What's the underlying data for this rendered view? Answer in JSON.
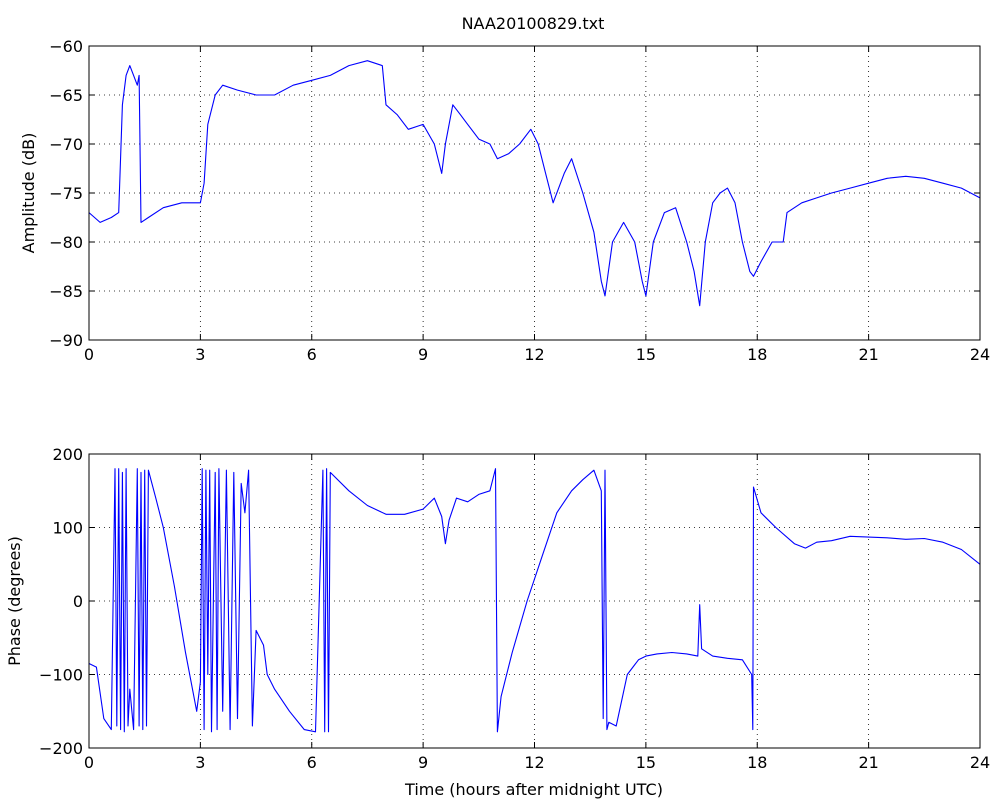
{
  "figure": {
    "title": "NAA20100829.txt"
  },
  "chart_data": [
    {
      "type": "line",
      "title": "NAA20100829.txt",
      "xlabel": "",
      "ylabel": "Amplitude (dB)",
      "xlim": [
        0,
        24
      ],
      "ylim": [
        -90,
        -60
      ],
      "xticks": [
        "0",
        "3",
        "6",
        "9",
        "12",
        "15",
        "18",
        "21",
        "24"
      ],
      "yticks": [
        "-60",
        "-65",
        "-70",
        "-75",
        "-80",
        "-85",
        "-90"
      ],
      "grid": true,
      "color": "#0000ff",
      "series": [
        {
          "x": [
            0,
            0.3,
            0.6,
            0.8,
            0.9,
            1.0,
            1.1,
            1.2,
            1.3,
            1.35,
            1.4,
            1.6,
            2.0,
            2.5,
            3.0,
            3.1,
            3.2,
            3.4,
            3.6,
            4.0,
            4.5,
            5.0,
            5.5,
            6.0,
            6.5,
            7.0,
            7.5,
            7.9,
            8.0,
            8.3,
            8.6,
            9.0,
            9.3,
            9.5,
            9.6,
            9.8,
            10.0,
            10.2,
            10.5,
            10.8,
            11.0,
            11.3,
            11.6,
            11.9,
            12.1,
            12.3,
            12.5,
            12.8,
            13.0,
            13.3,
            13.6,
            13.8,
            13.9,
            14.1,
            14.4,
            14.7,
            14.9,
            15.0,
            15.2,
            15.5,
            15.8,
            16.1,
            16.3,
            16.45,
            16.6,
            16.8,
            17.0,
            17.2,
            17.4,
            17.6,
            17.8,
            17.9,
            18.1,
            18.4,
            18.7,
            18.8,
            19.2,
            19.6,
            20.0,
            20.5,
            21.0,
            21.5,
            22.0,
            22.5,
            23.0,
            23.5,
            24.0
          ],
          "y": [
            -77,
            -78,
            -77.5,
            -77,
            -66,
            -63,
            -62,
            -63,
            -64,
            -63,
            -78,
            -77.5,
            -76.5,
            -76,
            -76,
            -74,
            -68,
            -65,
            -64,
            -64.5,
            -65,
            -65,
            -64,
            -63.5,
            -63,
            -62,
            -61.5,
            -62,
            -66,
            -67,
            -68.5,
            -68,
            -70,
            -73,
            -70,
            -66,
            -67,
            -68,
            -69.5,
            -70,
            -71.5,
            -71,
            -70,
            -68.5,
            -70,
            -73,
            -76,
            -73,
            -71.5,
            -75,
            -79,
            -84,
            -85.5,
            -80,
            -78,
            -80,
            -84,
            -85.5,
            -80,
            -77,
            -76.5,
            -80,
            -83,
            -86.5,
            -80,
            -76,
            -75,
            -74.5,
            -76,
            -80,
            -83,
            -83.5,
            -82,
            -80,
            -80,
            -77,
            -76,
            -75.5,
            -75,
            -74.5,
            -74,
            -73.5,
            -73.3,
            -73.5,
            -74,
            -74.5,
            -75.5
          ]
        }
      ]
    },
    {
      "type": "line",
      "title": "",
      "xlabel": "Time (hours after midnight UTC)",
      "ylabel": "Phase (degrees)",
      "xlim": [
        0,
        24
      ],
      "ylim": [
        -200,
        200
      ],
      "xticks": [
        "0",
        "3",
        "6",
        "9",
        "12",
        "15",
        "18",
        "21",
        "24"
      ],
      "yticks": [
        "200",
        "100",
        "0",
        "-100",
        "-200"
      ],
      "grid": true,
      "color": "#0000ff",
      "series": [
        {
          "x": [
            0,
            0.2,
            0.4,
            0.6,
            0.7,
            0.75,
            0.8,
            0.85,
            0.9,
            0.95,
            1.0,
            1.05,
            1.1,
            1.2,
            1.3,
            1.35,
            1.4,
            1.45,
            1.5,
            1.55,
            1.6,
            1.8,
            2.0,
            2.3,
            2.6,
            2.9,
            3.0,
            3.05,
            3.1,
            3.15,
            3.2,
            3.25,
            3.3,
            3.4,
            3.45,
            3.5,
            3.6,
            3.7,
            3.8,
            3.9,
            4.0,
            4.1,
            4.2,
            4.3,
            4.4,
            4.5,
            4.7,
            4.8,
            5.0,
            5.4,
            5.8,
            6.1,
            6.3,
            6.35,
            6.4,
            6.45,
            6.5,
            7.0,
            7.5,
            8.0,
            8.5,
            9.0,
            9.3,
            9.5,
            9.6,
            9.7,
            9.9,
            10.2,
            10.5,
            10.8,
            10.95,
            11.0,
            11.1,
            11.4,
            11.8,
            12.2,
            12.6,
            13.0,
            13.3,
            13.6,
            13.8,
            13.85,
            13.9,
            13.95,
            14.0,
            14.2,
            14.5,
            14.8,
            15.0,
            15.3,
            15.7,
            16.1,
            16.4,
            16.45,
            16.5,
            16.8,
            17.2,
            17.6,
            17.85,
            17.88,
            17.9,
            18.1,
            18.5,
            19.0,
            19.3,
            19.6,
            20.0,
            20.5,
            21.0,
            21.5,
            22.0,
            22.5,
            23.0,
            23.5,
            24.0
          ],
          "y": [
            -85,
            -90,
            -160,
            -175,
            180,
            -170,
            180,
            -175,
            175,
            -178,
            180,
            -170,
            -120,
            -175,
            180,
            -170,
            175,
            -175,
            178,
            -170,
            178,
            140,
            100,
            20,
            -70,
            -150,
            -110,
            180,
            -175,
            178,
            -100,
            178,
            -178,
            175,
            -175,
            180,
            -150,
            178,
            -175,
            175,
            -160,
            160,
            120,
            178,
            -170,
            -40,
            -60,
            -100,
            -120,
            -150,
            -175,
            -178,
            178,
            -178,
            180,
            -178,
            175,
            150,
            130,
            118,
            118,
            125,
            140,
            115,
            78,
            110,
            140,
            135,
            145,
            150,
            180,
            -178,
            -130,
            -70,
            0,
            60,
            120,
            150,
            165,
            178,
            150,
            -160,
            178,
            -175,
            -165,
            -170,
            -100,
            -80,
            -75,
            -72,
            -70,
            -72,
            -75,
            -5,
            -65,
            -75,
            -78,
            -80,
            -100,
            -175,
            155,
            120,
            100,
            78,
            72,
            80,
            82,
            88,
            87,
            86,
            84,
            85,
            80,
            70,
            50
          ]
        }
      ]
    }
  ]
}
